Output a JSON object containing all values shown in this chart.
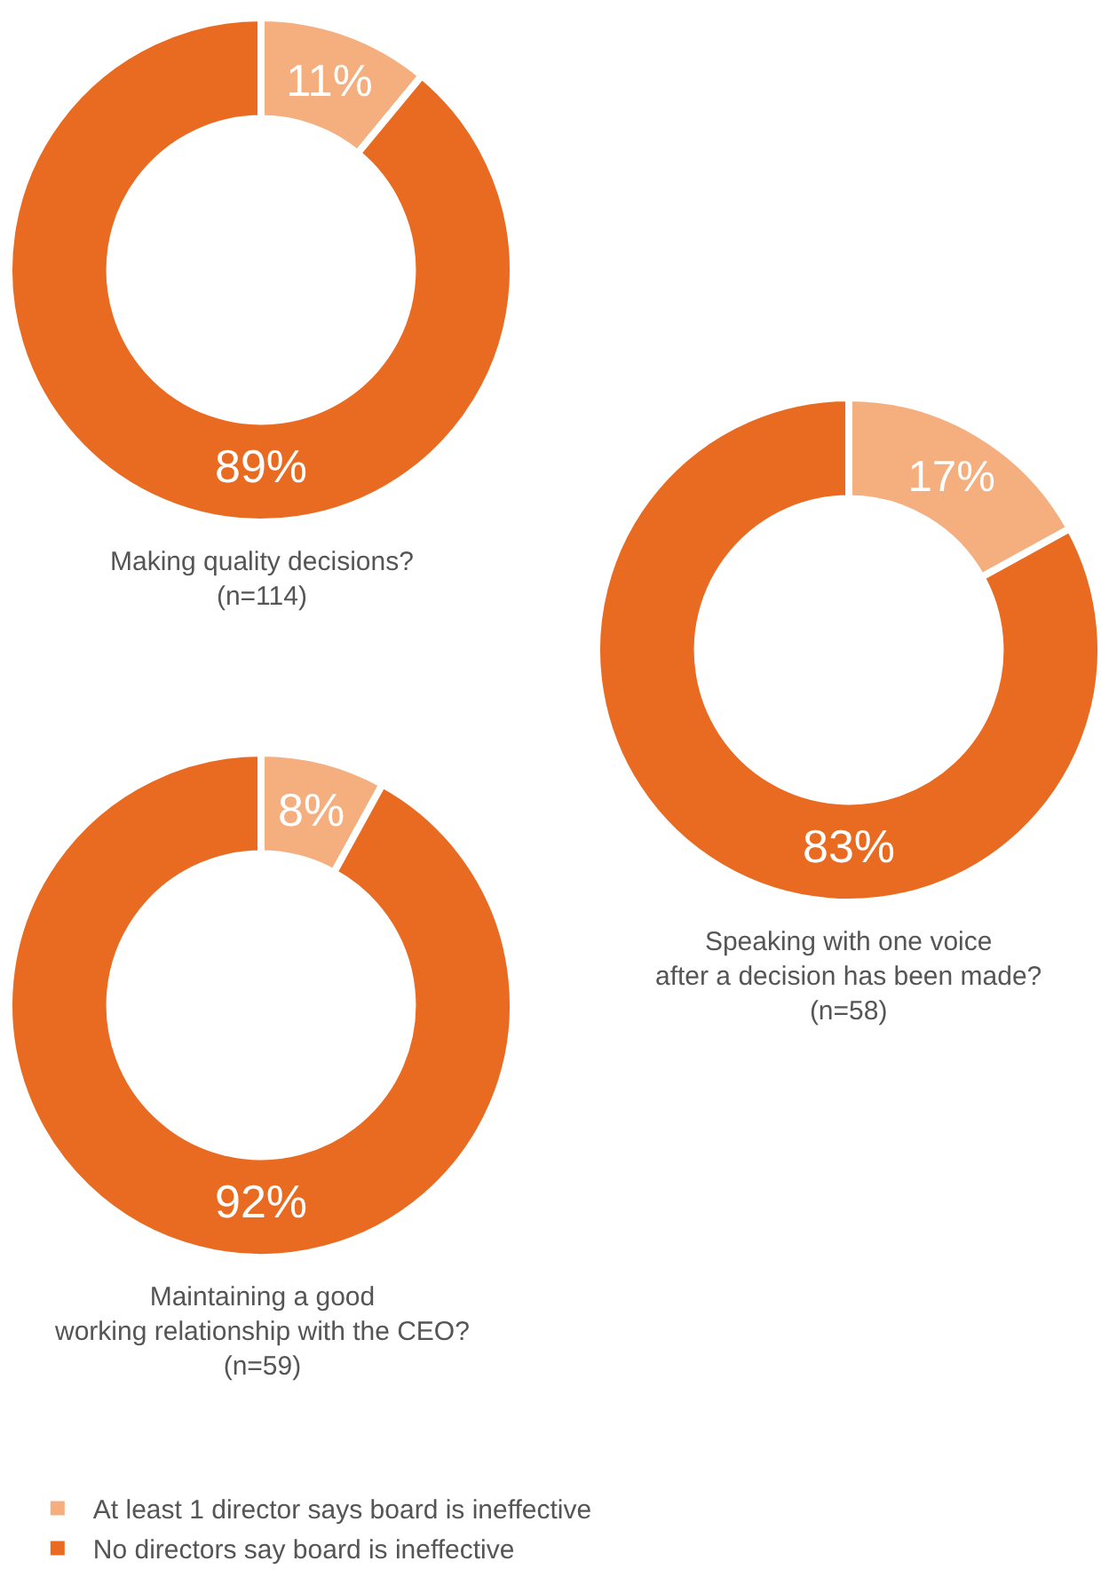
{
  "chart_data": [
    {
      "type": "donut",
      "title": "Making quality decisions?",
      "subtitle": "(n=114)",
      "categories": [
        "At least 1 director says board is ineffective",
        "No directors say board is ineffective"
      ],
      "values": [
        11,
        89
      ],
      "value_labels": [
        "11%",
        "89%"
      ],
      "colors": [
        "#f5ae7d",
        "#e96b22"
      ],
      "legend": "bottom"
    },
    {
      "type": "donut",
      "title": "Speaking with one voice\nafter a decision has been made?",
      "subtitle": "(n=58)",
      "categories": [
        null,
        null
      ],
      "values": [
        17,
        83
      ],
      "value_labels": [
        "17%",
        "83%"
      ],
      "colors": [
        "#f5ae7d",
        "#e96b22"
      ]
    },
    {
      "type": "donut",
      "title": "Maintaining a good\nworking relationship with the CEO?",
      "subtitle": "(n=59)",
      "categories": [
        null,
        null
      ],
      "values": [
        8,
        92
      ],
      "value_labels": [
        "8%",
        "92%"
      ],
      "colors": [
        "#f5ae7d",
        "#e96b22"
      ]
    }
  ]
}
